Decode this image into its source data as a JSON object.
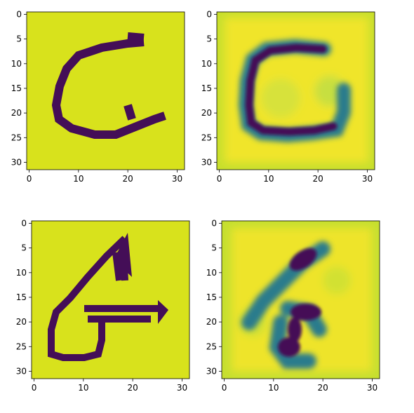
{
  "colors": {
    "background": "#d8e21c",
    "dark": "#440e57",
    "bright": "#fde725"
  },
  "chart_data": [
    {
      "type": "heatmap",
      "panel": "top-left",
      "image_size": [
        32,
        32
      ],
      "colormap": "viridis",
      "content": "input glyph G (binarized)",
      "xlim": [
        -0.5,
        31.5
      ],
      "ylim": [
        31.5,
        -0.5
      ],
      "xticks": [
        0,
        10,
        20,
        30
      ],
      "yticks": [
        0,
        5,
        10,
        15,
        20,
        25,
        30
      ],
      "xtick_labels": [
        "0",
        "10",
        "20",
        "30"
      ],
      "ytick_labels": [
        "0",
        "5",
        "10",
        "15",
        "20",
        "25",
        "30"
      ]
    },
    {
      "type": "heatmap",
      "panel": "top-right",
      "image_size": [
        32,
        32
      ],
      "colormap": "viridis",
      "content": "reconstruction of glyph G (blurred)",
      "xlim": [
        -0.5,
        31.5
      ],
      "ylim": [
        31.5,
        -0.5
      ],
      "xticks": [
        0,
        10,
        20,
        30
      ],
      "yticks": [
        0,
        5,
        10,
        15,
        20,
        25,
        30
      ],
      "xtick_labels": [
        "0",
        "10",
        "20",
        "30"
      ],
      "ytick_labels": [
        "0",
        "5",
        "10",
        "15",
        "20",
        "25",
        "30"
      ]
    },
    {
      "type": "heatmap",
      "panel": "bottom-left",
      "image_size": [
        32,
        32
      ],
      "colormap": "viridis",
      "content": "input glyph G variant (binarized)",
      "xlim": [
        -0.5,
        31.5
      ],
      "ylim": [
        31.5,
        -0.5
      ],
      "xticks": [
        0,
        10,
        20,
        30
      ],
      "yticks": [
        0,
        5,
        10,
        15,
        20,
        25,
        30
      ],
      "xtick_labels": [
        "0",
        "10",
        "20",
        "30"
      ],
      "ytick_labels": [
        "0",
        "5",
        "10",
        "15",
        "20",
        "25",
        "30"
      ]
    },
    {
      "type": "heatmap",
      "panel": "bottom-right",
      "image_size": [
        32,
        32
      ],
      "colormap": "viridis",
      "content": "reconstruction of glyph variant (blurred)",
      "xlim": [
        -0.5,
        31.5
      ],
      "ylim": [
        31.5,
        -0.5
      ],
      "xticks": [
        0,
        10,
        20,
        30
      ],
      "yticks": [
        0,
        5,
        10,
        15,
        20,
        25,
        30
      ],
      "xtick_labels": [
        "0",
        "10",
        "20",
        "30"
      ],
      "ytick_labels": [
        "0",
        "5",
        "10",
        "15",
        "20",
        "25",
        "30"
      ]
    }
  ]
}
